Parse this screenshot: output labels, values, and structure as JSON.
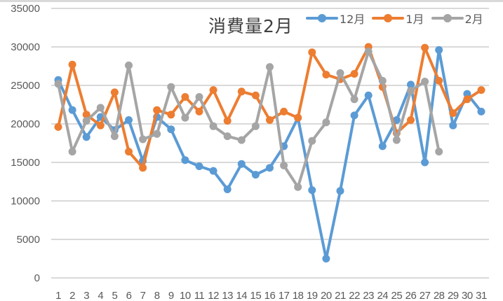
{
  "chart_data": {
    "type": "line",
    "title": "消費量2月",
    "xlabel": "",
    "ylabel": "",
    "ylim": [
      0,
      35000
    ],
    "yticks": [
      0,
      5000,
      10000,
      15000,
      20000,
      25000,
      30000,
      35000
    ],
    "grid": true,
    "legend_position": "top-right",
    "categories": [
      "1",
      "2",
      "3",
      "4",
      "5",
      "6",
      "7",
      "8",
      "9",
      "10",
      "11",
      "12",
      "13",
      "14",
      "15",
      "16",
      "17",
      "18",
      "19",
      "20",
      "21",
      "22",
      "23",
      "24",
      "25",
      "26",
      "27",
      "28",
      "29",
      "30",
      "31"
    ],
    "series": [
      {
        "name": "12月",
        "color": "#5b9bd5",
        "values": [
          25700,
          21800,
          18300,
          20900,
          19200,
          20500,
          15200,
          20900,
          19300,
          15300,
          14500,
          13900,
          11500,
          14800,
          13400,
          14300,
          17100,
          20800,
          11400,
          2500,
          11300,
          21100,
          23700,
          17100,
          20500,
          25100,
          15000,
          29600,
          19800,
          23900,
          21600
        ]
      },
      {
        "name": "1月",
        "color": "#ed7d31",
        "values": [
          19600,
          27700,
          21200,
          19800,
          24100,
          16400,
          14300,
          21800,
          21200,
          23500,
          21600,
          24400,
          20400,
          24200,
          23700,
          20500,
          21600,
          20800,
          29300,
          26400,
          25800,
          26500,
          30000,
          24800,
          18800,
          20500,
          29900,
          25600,
          21400,
          23200,
          24400
        ]
      },
      {
        "name": "2月",
        "color": "#a5a5a5",
        "values": [
          25200,
          16400,
          20400,
          22100,
          18400,
          27600,
          18000,
          18700,
          24800,
          20800,
          23500,
          19700,
          18400,
          17900,
          19700,
          27400,
          14600,
          11800,
          17800,
          20200,
          26600,
          23200,
          29400,
          25600,
          17900,
          24300,
          25500,
          16400
        ]
      }
    ]
  },
  "legend": {
    "items": [
      {
        "label": "12月",
        "color": "#5b9bd5"
      },
      {
        "label": "1月",
        "color": "#ed7d31"
      },
      {
        "label": "2月",
        "color": "#a5a5a5"
      }
    ]
  },
  "colors": {
    "grid": "#d9d9d9",
    "axis_text": "#595959",
    "title_text": "#404040"
  }
}
